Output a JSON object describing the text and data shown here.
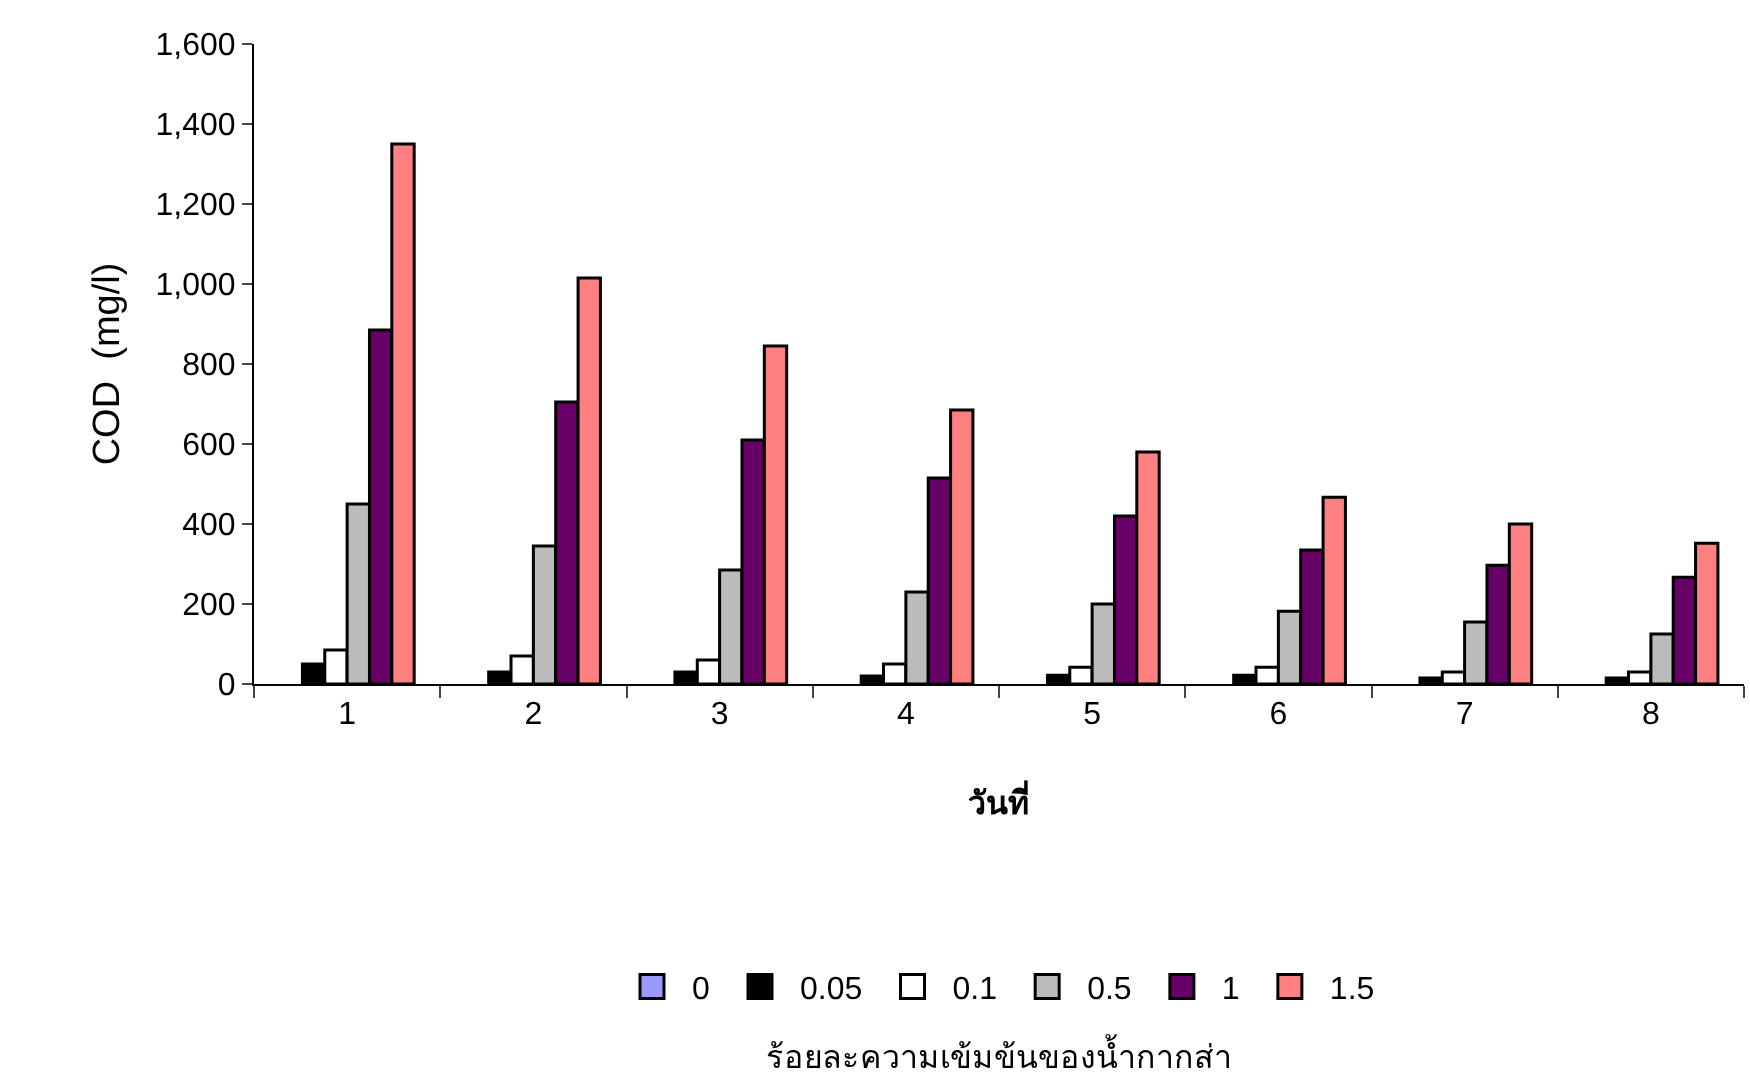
{
  "chart_data": {
    "type": "bar",
    "xlabel": "วันที่",
    "ylabel": "COD  (mg/l)",
    "legend_title": "ร้อยละความเข้มข้นของน้ำกากส่า",
    "categories": [
      "1",
      "2",
      "3",
      "4",
      "5",
      "6",
      "7",
      "8"
    ],
    "series": [
      {
        "name": "0",
        "color": "#9999ff",
        "values": [
          null,
          null,
          null,
          null,
          null,
          null,
          null,
          null
        ]
      },
      {
        "name": "0.05",
        "color": "#000000",
        "values": [
          50,
          30,
          30,
          20,
          22,
          22,
          15,
          15
        ]
      },
      {
        "name": "0.1",
        "color": "#ffffff",
        "values": [
          85,
          70,
          60,
          50,
          42,
          42,
          30,
          30
        ]
      },
      {
        "name": "0.5",
        "color": "#bbbbbb",
        "values": [
          450,
          345,
          285,
          230,
          200,
          182,
          155,
          125
        ]
      },
      {
        "name": "1",
        "color": "#660066",
        "values": [
          885,
          705,
          610,
          515,
          420,
          335,
          297,
          267
        ]
      },
      {
        "name": "1.5",
        "color": "#ff8080",
        "values": [
          1350,
          1015,
          845,
          685,
          580,
          467,
          400,
          352
        ]
      }
    ],
    "ylim": [
      0,
      1600
    ],
    "yticks": [
      {
        "value": 0,
        "label": "0"
      },
      {
        "value": 200,
        "label": "200"
      },
      {
        "value": 400,
        "label": "400"
      },
      {
        "value": 600,
        "label": "600"
      },
      {
        "value": 800,
        "label": "800"
      },
      {
        "value": 1000,
        "label": "1,000"
      },
      {
        "value": 1200,
        "label": "1,200"
      },
      {
        "value": 1400,
        "label": "1,400"
      },
      {
        "value": 1600,
        "label": "1,600"
      }
    ],
    "grid": false,
    "legend": "bottom"
  }
}
